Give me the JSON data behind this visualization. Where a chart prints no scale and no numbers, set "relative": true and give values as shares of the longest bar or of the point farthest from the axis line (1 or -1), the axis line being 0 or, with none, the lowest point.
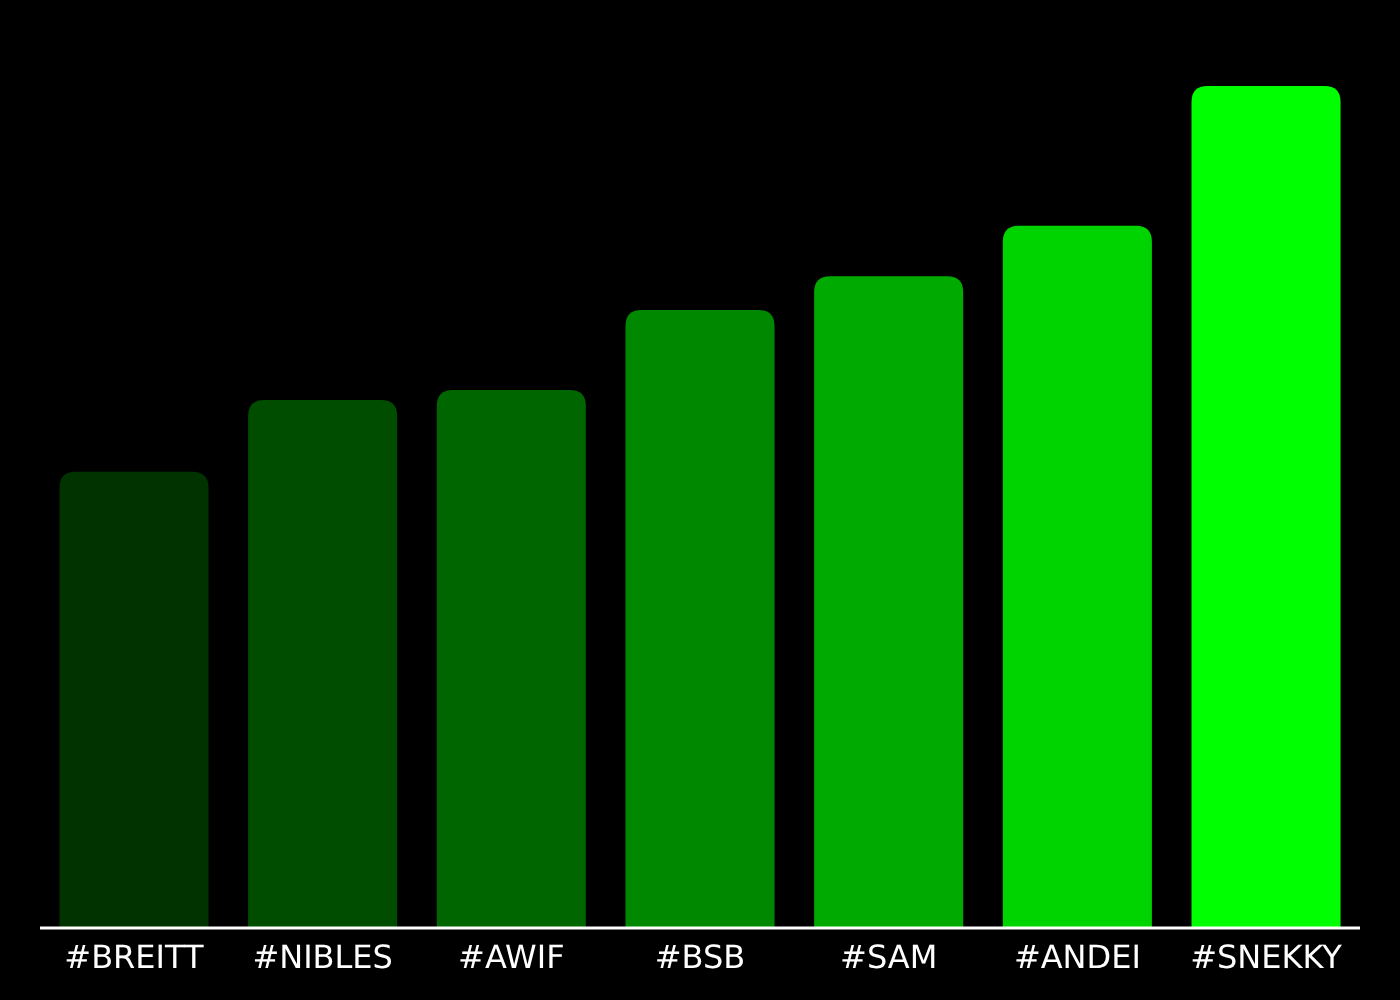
{
  "chart_data": {
    "type": "bar",
    "relative": true,
    "categories": [
      "#BREITT",
      "#NIBLES",
      "#AWIF",
      "#BSB",
      "#SAM",
      "#ANDEI",
      "#SNEKKY"
    ],
    "values": [
      0.542,
      0.627,
      0.639,
      0.734,
      0.774,
      0.834,
      1
    ],
    "colors": [
      "#003300",
      "#004d00",
      "#006600",
      "#008800",
      "#00aa00",
      "#00d400",
      "#00ff00"
    ]
  }
}
